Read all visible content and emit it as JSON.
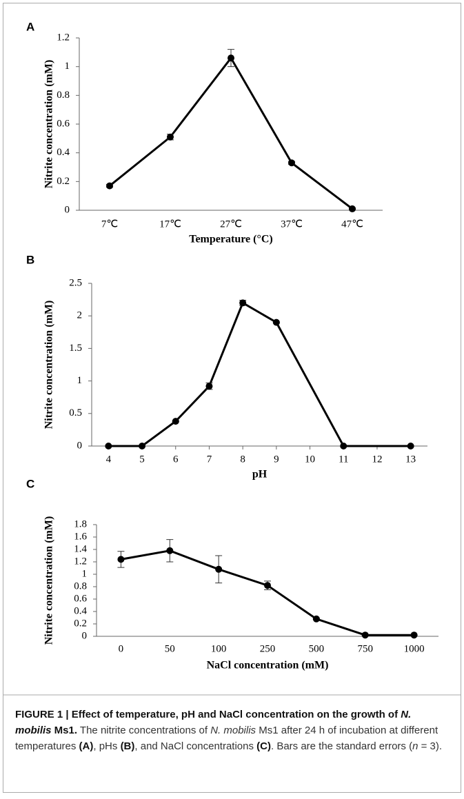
{
  "chart_data": [
    {
      "type": "line",
      "panel": "A",
      "ylabel": "Nitrite concentration (mM)",
      "xlabel": "Temperature (°C)",
      "categories": [
        "7℃",
        "17℃",
        "27℃",
        "37℃",
        "47℃"
      ],
      "values": [
        0.17,
        0.51,
        1.06,
        0.33,
        0.01
      ],
      "errors": [
        0.01,
        0.02,
        0.06,
        0.01,
        0.005
      ],
      "color": "#000000",
      "ylim": [
        0,
        1.2
      ],
      "yticks": [
        0,
        0.2,
        0.4,
        0.6,
        0.8,
        1,
        1.2
      ]
    },
    {
      "type": "line",
      "panel": "B",
      "ylabel": "Nitrite concentration (mM)",
      "xlabel": "pH",
      "x": [
        4,
        5,
        6,
        7,
        8,
        9,
        11,
        13
      ],
      "values": [
        0,
        0,
        0.38,
        0.92,
        2.2,
        1.9,
        0,
        0
      ],
      "errors": [
        0,
        0,
        0.01,
        0.05,
        0.04,
        0.01,
        0,
        0
      ],
      "color": "#000000",
      "xlim": [
        3.5,
        13.5
      ],
      "xticks": [
        4,
        5,
        6,
        7,
        8,
        9,
        10,
        11,
        12,
        13
      ],
      "ylim": [
        0,
        2.5
      ],
      "yticks": [
        0,
        0.5,
        1,
        1.5,
        2,
        2.5
      ]
    },
    {
      "type": "line",
      "panel": "C",
      "ylabel": "Nitrite concentration (mM)",
      "xlabel": "NaCl concentration (mM)",
      "categories": [
        "0",
        "50",
        "100",
        "250",
        "500",
        "750",
        "1000"
      ],
      "values": [
        1.24,
        1.38,
        1.08,
        0.82,
        0.28,
        0.02,
        0.02
      ],
      "errors": [
        0.13,
        0.18,
        0.22,
        0.07,
        0.01,
        0.01,
        0.01
      ],
      "color": "#000000",
      "ylim": [
        0,
        1.8
      ],
      "yticks": [
        0,
        0.2,
        0.4,
        0.6,
        0.8,
        1,
        1.2,
        1.4,
        1.6,
        1.8
      ]
    }
  ],
  "caption": [
    {
      "text": "FIGURE 1 | Effect of temperature, pH and NaCl concentration on the growth of ",
      "style": "bold"
    },
    {
      "text": "N. mobilis",
      "style": "bold-italic"
    },
    {
      "text": " Ms1.",
      "style": "bold"
    },
    {
      "text": " The nitrite concentrations of ",
      "style": "normal"
    },
    {
      "text": "N. mobilis",
      "style": "italic"
    },
    {
      "text": " Ms1 after 24 h of incubation at different temperatures ",
      "style": "normal"
    },
    {
      "text": "(A)",
      "style": "bold"
    },
    {
      "text": ", pHs ",
      "style": "normal"
    },
    {
      "text": "(B)",
      "style": "bold"
    },
    {
      "text": ", and NaCl concentrations ",
      "style": "normal"
    },
    {
      "text": "(C)",
      "style": "bold"
    },
    {
      "text": ". Bars are the standard errors (",
      "style": "normal"
    },
    {
      "text": "n",
      "style": "italic"
    },
    {
      "text": " = 3).",
      "style": "normal"
    }
  ]
}
